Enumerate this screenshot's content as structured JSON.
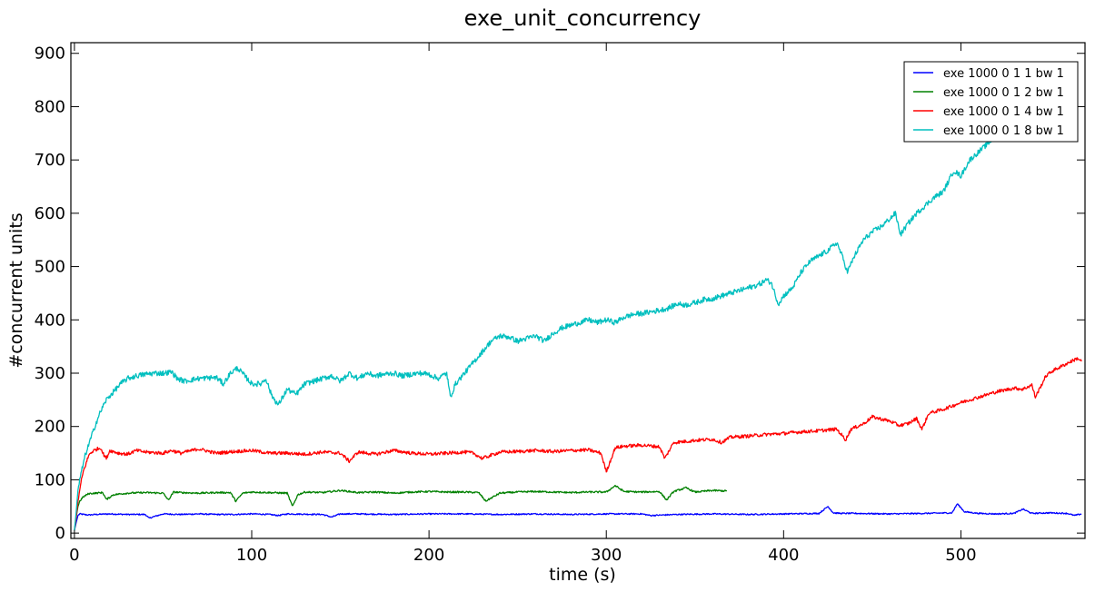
{
  "chart_data": {
    "type": "line",
    "title": "exe_unit_concurrency",
    "xlabel": "time (s)",
    "ylabel": "#concurrent units",
    "xlim": [
      -2,
      570
    ],
    "ylim": [
      -10,
      920
    ],
    "xticks": [
      0,
      100,
      200,
      300,
      400,
      500
    ],
    "yticks": [
      0,
      100,
      200,
      300,
      400,
      500,
      600,
      700,
      800,
      900
    ],
    "grid": false,
    "legend_position": "top-right",
    "series": [
      {
        "name": "exe 1000 0 1 1 bw 1",
        "color": "#0000ff",
        "x": [
          0,
          1,
          2,
          3,
          5,
          8,
          12,
          20,
          30,
          40,
          42,
          50,
          60,
          70,
          80,
          90,
          100,
          110,
          115,
          120,
          140,
          145,
          150,
          160,
          180,
          200,
          220,
          240,
          260,
          280,
          300,
          320,
          325,
          340,
          360,
          380,
          400,
          420,
          425,
          428,
          432,
          440,
          460,
          480,
          495,
          498,
          502,
          510,
          520,
          530,
          535,
          540,
          550,
          560,
          564,
          568
        ],
        "y": [
          5,
          20,
          33,
          36,
          35,
          34,
          35,
          36,
          35,
          35,
          28,
          36,
          35,
          36,
          35,
          35,
          36,
          35,
          33,
          36,
          35,
          30,
          36,
          36,
          35,
          36,
          36,
          35,
          36,
          35,
          36,
          36,
          33,
          35,
          36,
          35,
          36,
          37,
          50,
          38,
          37,
          37,
          36,
          37,
          38,
          55,
          40,
          37,
          36,
          37,
          45,
          37,
          38,
          37,
          33,
          36
        ]
      },
      {
        "name": "exe 1000 0 1 2 bw 1",
        "color": "#008000",
        "x": [
          0,
          1,
          2,
          3,
          5,
          8,
          12,
          16,
          18,
          22,
          30,
          40,
          50,
          53,
          56,
          60,
          70,
          80,
          88,
          91,
          95,
          100,
          110,
          120,
          123,
          126,
          130,
          140,
          150,
          160,
          170,
          180,
          190,
          200,
          210,
          220,
          228,
          232,
          240,
          250,
          260,
          270,
          280,
          290,
          300,
          305,
          310,
          320,
          330,
          334,
          338,
          345,
          350,
          360,
          368
        ],
        "y": [
          5,
          30,
          50,
          60,
          68,
          74,
          75,
          76,
          63,
          72,
          75,
          76,
          75,
          62,
          77,
          76,
          75,
          76,
          76,
          60,
          75,
          77,
          76,
          75,
          50,
          72,
          77,
          76,
          80,
          76,
          77,
          75,
          77,
          78,
          77,
          77,
          76,
          60,
          75,
          77,
          78,
          77,
          76,
          77,
          77,
          89,
          78,
          77,
          78,
          62,
          78,
          85,
          77,
          80,
          79
        ]
      },
      {
        "name": "exe 1000 0 1 4 bw 1",
        "color": "#ff0000",
        "x": [
          0,
          1,
          2,
          3,
          4,
          5,
          6,
          7,
          8,
          9,
          11,
          13,
          15,
          16,
          18,
          20,
          25,
          30,
          35,
          40,
          50,
          55,
          60,
          70,
          80,
          90,
          100,
          110,
          120,
          130,
          140,
          150,
          155,
          160,
          170,
          180,
          190,
          200,
          210,
          220,
          225,
          230,
          240,
          250,
          260,
          270,
          280,
          290,
          297,
          300,
          305,
          310,
          320,
          330,
          333,
          338,
          345,
          350,
          360,
          365,
          370,
          380,
          390,
          400,
          410,
          420,
          430,
          435,
          438,
          445,
          450,
          460,
          465,
          470,
          475,
          478,
          482,
          490,
          500,
          510,
          520,
          530,
          535,
          540,
          542,
          548,
          552,
          558,
          562,
          566,
          568
        ],
        "y": [
          5,
          30,
          60,
          80,
          100,
          115,
          125,
          135,
          145,
          150,
          155,
          158,
          160,
          150,
          140,
          155,
          150,
          148,
          155,
          152,
          150,
          155,
          150,
          158,
          150,
          153,
          155,
          150,
          150,
          148,
          152,
          150,
          135,
          152,
          148,
          155,
          150,
          148,
          150,
          152,
          150,
          140,
          152,
          153,
          155,
          153,
          155,
          156,
          150,
          115,
          160,
          163,
          165,
          162,
          140,
          170,
          172,
          174,
          176,
          170,
          180,
          182,
          185,
          187,
          190,
          192,
          195,
          175,
          195,
          205,
          218,
          210,
          202,
          205,
          215,
          195,
          225,
          232,
          245,
          255,
          265,
          272,
          270,
          278,
          255,
          295,
          305,
          315,
          322,
          328,
          322
        ]
      },
      {
        "name": "exe 1000 0 1 8 bw 1",
        "color": "#00bfbf",
        "x": [
          0,
          1,
          2,
          3,
          4,
          5,
          6,
          8,
          10,
          12,
          15,
          18,
          22,
          26,
          30,
          35,
          40,
          45,
          50,
          55,
          58,
          62,
          70,
          80,
          84,
          88,
          92,
          96,
          100,
          105,
          108,
          111,
          115,
          120,
          125,
          130,
          135,
          140,
          145,
          150,
          155,
          160,
          165,
          170,
          175,
          180,
          185,
          190,
          195,
          200,
          205,
          210,
          212,
          215,
          220,
          225,
          230,
          235,
          240,
          245,
          250,
          255,
          260,
          265,
          270,
          275,
          280,
          285,
          290,
          295,
          300,
          305,
          310,
          315,
          320,
          325,
          330,
          335,
          340,
          345,
          350,
          355,
          360,
          365,
          370,
          375,
          380,
          385,
          388,
          390,
          393,
          397,
          400,
          405,
          410,
          415,
          420,
          425,
          430,
          433,
          436,
          440,
          445,
          450,
          455,
          460,
          463,
          466,
          470,
          475,
          480,
          485,
          490,
          493,
          496,
          500,
          505,
          510,
          515,
          520,
          525
        ],
        "y": [
          5,
          40,
          80,
          100,
          115,
          130,
          145,
          165,
          185,
          205,
          230,
          250,
          265,
          280,
          290,
          295,
          298,
          300,
          300,
          302,
          290,
          285,
          290,
          292,
          280,
          300,
          310,
          295,
          280,
          280,
          290,
          260,
          240,
          270,
          260,
          280,
          285,
          290,
          295,
          285,
          300,
          290,
          300,
          295,
          298,
          300,
          295,
          298,
          300,
          298,
          290,
          300,
          255,
          280,
          300,
          320,
          340,
          360,
          370,
          368,
          360,
          365,
          370,
          360,
          375,
          385,
          390,
          395,
          400,
          395,
          400,
          395,
          405,
          410,
          412,
          415,
          418,
          422,
          430,
          428,
          432,
          438,
          440,
          445,
          450,
          455,
          460,
          465,
          470,
          475,
          470,
          430,
          445,
          460,
          490,
          510,
          520,
          530,
          545,
          520,
          490,
          520,
          550,
          565,
          575,
          590,
          600,
          560,
          580,
          600,
          615,
          630,
          640,
          660,
          680,
          670,
          700,
          715,
          730,
          745,
          760
        ]
      }
    ]
  }
}
